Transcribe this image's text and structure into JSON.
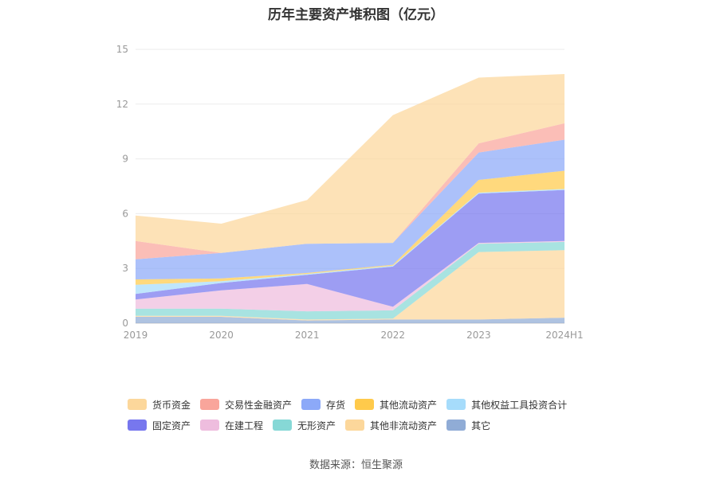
{
  "chart_data": {
    "type": "area",
    "title": "历年主要资产堆积图（亿元）",
    "source": "数据来源：恒生聚源",
    "categories": [
      "2019",
      "2020",
      "2021",
      "2022",
      "2023",
      "2024H1"
    ],
    "y_ticks": [
      "0",
      "3",
      "6",
      "9",
      "12",
      "15"
    ],
    "ylim": [
      0,
      15
    ],
    "xlabel": "",
    "ylabel": "",
    "stack_order": [
      "其它",
      "其他非流动资产",
      "无形资产",
      "在建工程",
      "固定资产",
      "其他权益工具投资合计",
      "其他流动资产",
      "存货",
      "交易性金融资产",
      "货币资金"
    ],
    "series": [
      {
        "name": "货币资金",
        "color": "#FCD79B",
        "values": [
          1.4,
          1.6,
          2.4,
          7.0,
          3.6,
          2.7
        ]
      },
      {
        "name": "交易性金融资产",
        "color": "#F9A59B",
        "values": [
          1.0,
          0.0,
          0.0,
          0.0,
          0.5,
          0.9
        ]
      },
      {
        "name": "存货",
        "color": "#8CA9F8",
        "values": [
          1.1,
          1.4,
          1.6,
          1.2,
          1.5,
          1.7
        ]
      },
      {
        "name": "其他流动资产",
        "color": "#FFCA4B",
        "values": [
          0.3,
          0.15,
          0.05,
          0.05,
          0.7,
          1.0
        ]
      },
      {
        "name": "其他权益工具投资合计",
        "color": "#A6DCFB",
        "values": [
          0.5,
          0.1,
          0.05,
          0.05,
          0.05,
          0.05
        ]
      },
      {
        "name": "固定资产",
        "color": "#7777EE",
        "values": [
          0.3,
          0.4,
          0.5,
          2.2,
          2.7,
          2.8
        ]
      },
      {
        "name": "在建工程",
        "color": "#EEBDDE",
        "values": [
          0.5,
          1.0,
          1.5,
          0.2,
          0.05,
          0.05
        ]
      },
      {
        "name": "无形资产",
        "color": "#86D8D6",
        "values": [
          0.4,
          0.4,
          0.45,
          0.45,
          0.45,
          0.45
        ]
      },
      {
        "name": "其他非流动资产",
        "color": "#FCD79B",
        "values": [
          0.05,
          0.05,
          0.05,
          0.05,
          3.7,
          3.7
        ]
      },
      {
        "name": "其它",
        "color": "#90ACD6",
        "values": [
          0.35,
          0.35,
          0.15,
          0.2,
          0.2,
          0.3
        ]
      }
    ]
  },
  "legend": {
    "row1": [
      {
        "label": "货币资金",
        "color": "#FCD79B"
      },
      {
        "label": "交易性金融资产",
        "color": "#F9A59B"
      },
      {
        "label": "存货",
        "color": "#8CA9F8"
      },
      {
        "label": "其他流动资产",
        "color": "#FFCA4B"
      },
      {
        "label": "其他权益工具投资合计",
        "color": "#A6DCFB"
      }
    ],
    "row2": [
      {
        "label": "固定资产",
        "color": "#7777EE"
      },
      {
        "label": "在建工程",
        "color": "#EEBDDE"
      },
      {
        "label": "无形资产",
        "color": "#86D8D6"
      },
      {
        "label": "其他非流动资产",
        "color": "#FCD79B"
      },
      {
        "label": "其它",
        "color": "#90ACD6"
      }
    ]
  }
}
